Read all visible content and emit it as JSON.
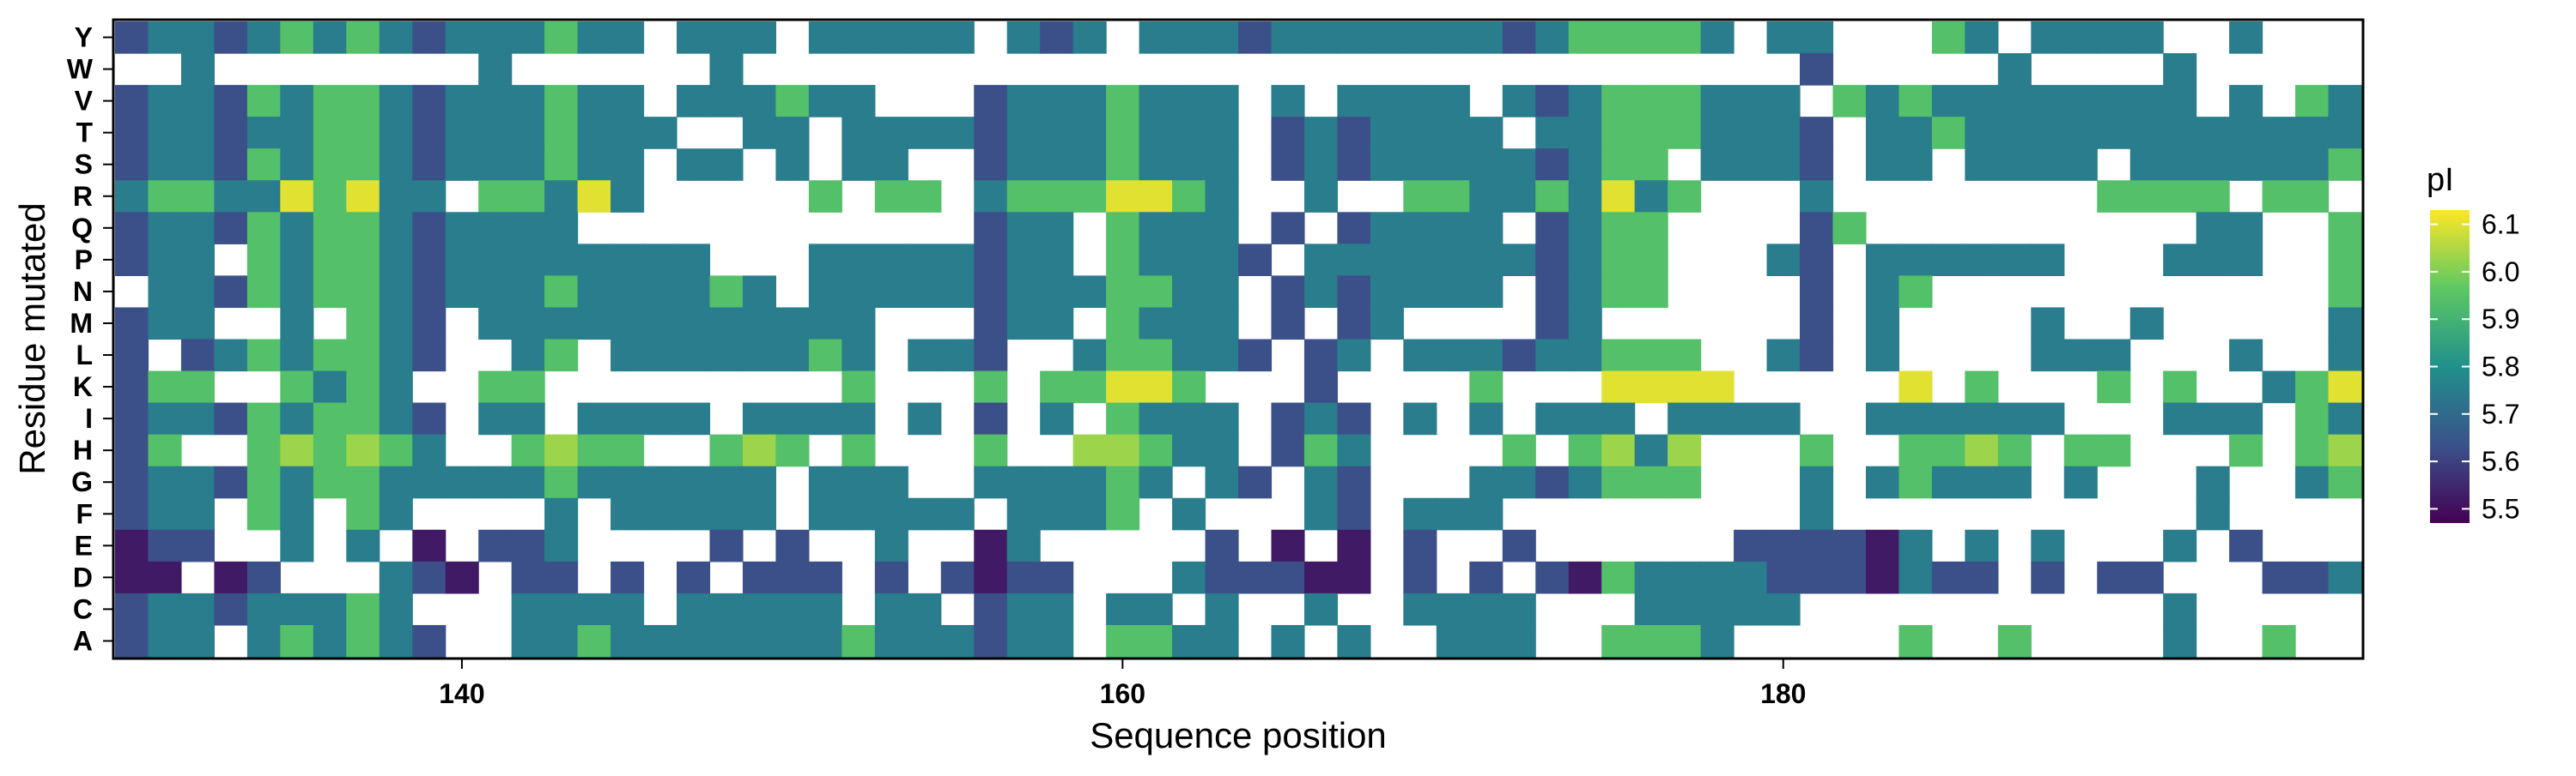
{
  "chart_data": {
    "type": "heatmap",
    "xlabel": "Sequence position",
    "ylabel": "Residue mutated",
    "x_ticks": [
      140,
      160,
      180
    ],
    "x_range": [
      130,
      197
    ],
    "rows": [
      "Y",
      "W",
      "V",
      "T",
      "S",
      "R",
      "Q",
      "P",
      "N",
      "M",
      "L",
      "K",
      "I",
      "H",
      "G",
      "F",
      "E",
      "D",
      "C",
      "A"
    ],
    "legend": {
      "title": "pI",
      "ticks": [
        5.5,
        5.6,
        5.7,
        5.8,
        5.9,
        6.0,
        6.1
      ],
      "range": [
        5.47,
        6.13
      ],
      "placement": "right"
    },
    "palette": [
      "#440154",
      "#3b528b",
      "#21908c",
      "#5dc863",
      "#fde725"
    ],
    "band_values": {
      "A": 5.52,
      "B": 5.63,
      "C": 5.75,
      "G": 5.94,
      "Y": 6.1,
      "H": 6.03,
      "W": null
    },
    "row_patterns": {
      "Y": "BCCBCGCGCBCCCGCCWCCCWCCCCCWCBCWCCCBCCCCCCCBCGGGGCWCCWWWGCWCCCCWWCWW",
      "W": "WWCWWWWWWWWCWWWWWWCWWWWWWWWWWWWWWWWWWWWWWWWWWWWWWWWBWWWWWCWWWWCWWWWW",
      "V": "BCCBGCGGCBCCCGCCWCCCGCCWWWBCCCGCCCWCWCCCCWCBCGGGCCCWGCGCCCCCCCCWCWGCW",
      "T": "BCCBCCGGCBCCCGCCCWWCCWCCCCBCCCGCCCWBCBCCCCWCCGGGCCCBWCCGCCCCCCCCCCCCW",
      "S": "BCCBGCGGCBCCCGCCWCCWCWCCWWBCCCGCCCWBCBCCCCCBCGGWCCCBWCCWCCCCWCCCCCCGC",
      "R": "CGGCCYGYCCWGGCYCWWWWWGWGGWCGGGYYGCWWCWWGGCCGCYCGWWWCWWWWWWWWGGGGWGGWG",
      "Q": "BCCBGCGGCBCCCCWWWWWWWWWWWWBCCWGCCCWBWBCCCCWBCGGWWWWBGWWWWWWWWWWCCWWGC",
      "P": "BCCWGCGGCBCCCCCCCCWWWCCCCCBCCWGCCCBWCCCCCCCBCGGWWWCBWCCCCCCWWWCCCWWGC",
      "N": "WCCBGCGGCBCCCGCCCCGCWCCCCCBCCCGGCCWBCBCCCCWBCGGWWWWBWCGWWWWWWWWWWWWGC",
      "M": "BCCWWCWGCBWCCCCCCCCCCCCWWWBCCWGCCCWBWBCWWWWBCWWWWWWBWCWWWWCWWCWWWWWCC",
      "L": "BWBCGCGGCBWWCGWCCCCCCGCWCCBWWCGGCCBWBCWCCCBCCGGGWWCBWCWWWWCCCWWWCWWCC",
      "K": "BGGWWGCGCWWGGWWWWWWWWWGWWWGWGGYYGWWWBWWWWGWWWYYYYWWWWWYWGWWWGWGWWCGYW",
      "I": "BCCBGCGGCBWCCWCCCCWCCCCWCWBWCWGCCCWBCBWCWCWCCCWCCCCWWCCCCCCWWWCCCWGCC",
      "H": "BGWWGHGHGCWWGHGGWWGHGWGWWWGWWHHGCCWBGCWWWWGWGHCHWWWGWWGGHGWGGWWWGWGHG",
      "G": "BCCBGCGGCCCCCGCCCCCCWCCCWWCCCCGCWCBWCBWWWCCBCGGGWWWCWCGCCCWCWWWCWWCGC",
      "F": "BCCWGCWGCWWWWCWCCCCCWCCCCCWCCCGWCWWWCBWCCCWWWWWWWWWCWWWWWWWWWWWCWWWWWCC",
      "E": "ABBWWCWCWAWBBCWWWWBWBWWCWWACWWWWWBWAWAWBWWBWWWWWWBBBBACWCWCWWWCWBWWW",
      "D": "AAWABWWWCBAWBBWBWBWBBBWBWBABBWWWCBBBAAWBWBWBAGCCCCBBBACBBWBWBBWWWBBCWB",
      "C": "BCCBCCCGCWWWCCCCWCCCCCWCCWBCCWCCWCWWCWWCCCCWWWCCCCCWWWWWWWWWWWCWWWWWCC",
      "A": "BCCWCGCGCBWWCCGCCCCCCCGCCCBCCWGGCCWCWCWWCCCWWGGGCWWWWWGWWGWWWWCWWGWWWC"
    }
  }
}
